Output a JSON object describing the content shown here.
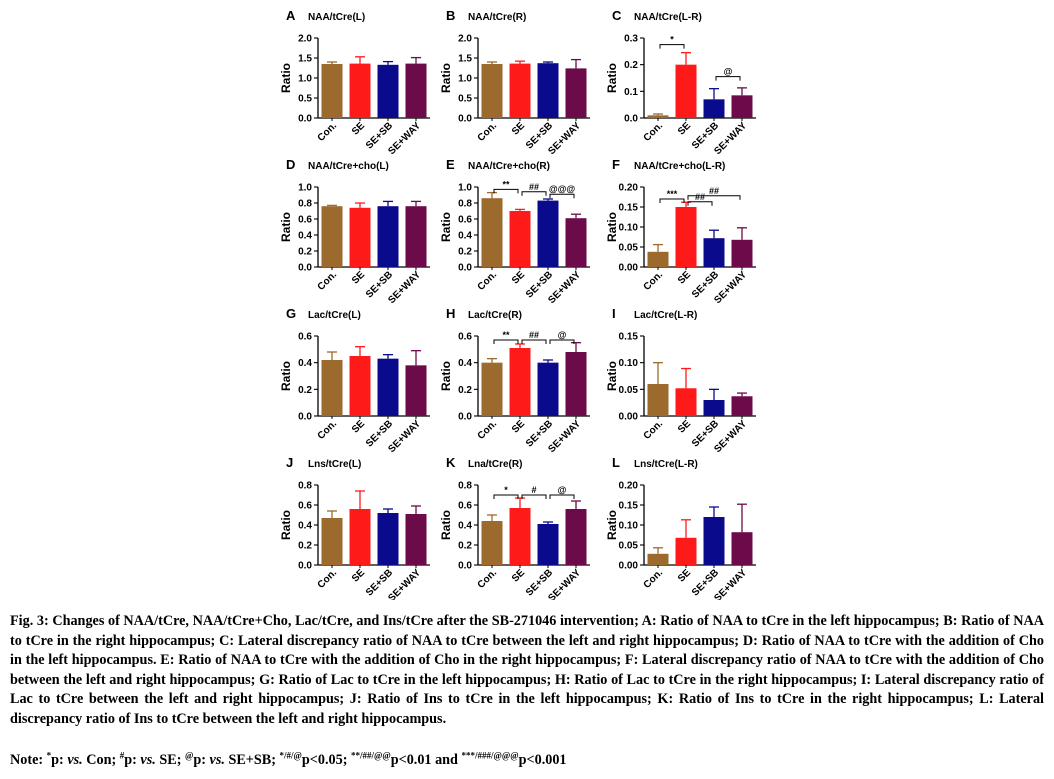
{
  "colors": {
    "Con.": "#9c6a2c",
    "SE": "#ff1a1a",
    "SE+SB": "#0a0a8c",
    "SE+WAY": "#6c0a4a"
  },
  "chart_data": [
    {
      "panel": "A",
      "type": "bar",
      "title": "NAA/tCre(L)",
      "ylabel": "Ratio",
      "categories": [
        "Con.",
        "SE",
        "SE+SB",
        "SE+WAY"
      ],
      "values": [
        1.35,
        1.36,
        1.33,
        1.36
      ],
      "errors": [
        0.05,
        0.17,
        0.08,
        0.15
      ],
      "ylim": [
        0,
        2.0
      ],
      "yticks": [
        "0.0",
        "0.5",
        "1.0",
        "1.5",
        "2.0"
      ],
      "brackets": []
    },
    {
      "panel": "B",
      "type": "bar",
      "title": "NAA/tCre(R)",
      "ylabel": "Ratio",
      "categories": [
        "Con.",
        "SE",
        "SE+SB",
        "SE+WAY"
      ],
      "values": [
        1.35,
        1.36,
        1.37,
        1.24
      ],
      "errors": [
        0.05,
        0.06,
        0.03,
        0.22
      ],
      "ylim": [
        0,
        2.0
      ],
      "yticks": [
        "0.0",
        "0.5",
        "1.0",
        "1.5",
        "2.0"
      ],
      "brackets": []
    },
    {
      "panel": "C",
      "type": "bar",
      "title": "NAA/tCre(L-R)",
      "ylabel": "Ratio",
      "categories": [
        "Con.",
        "SE",
        "SE+SB",
        "SE+WAY"
      ],
      "values": [
        0.01,
        0.2,
        0.07,
        0.085
      ],
      "errors": [
        0.005,
        0.045,
        0.04,
        0.028
      ],
      "ylim": [
        0,
        0.3
      ],
      "yticks": [
        "0.0",
        "0.1",
        "0.2",
        "0.3"
      ],
      "brackets": [
        {
          "from": 0,
          "to": 1,
          "y": 0.275,
          "label": "*"
        },
        {
          "from": 2,
          "to": 3,
          "y": 0.155,
          "label": "@"
        }
      ]
    },
    {
      "panel": "D",
      "type": "bar",
      "title": "NAA/tCre+cho(L)",
      "ylabel": "Ratio",
      "categories": [
        "Con.",
        "SE",
        "SE+SB",
        "SE+WAY"
      ],
      "values": [
        0.76,
        0.74,
        0.76,
        0.76
      ],
      "errors": [
        0.01,
        0.06,
        0.06,
        0.06
      ],
      "ylim": [
        0,
        1.0
      ],
      "yticks": [
        "0.0",
        "0.2",
        "0.4",
        "0.6",
        "0.8",
        "1.0"
      ],
      "brackets": []
    },
    {
      "panel": "E",
      "type": "bar",
      "title": "NAA/tCre+cho(R)",
      "ylabel": "Ratio",
      "categories": [
        "Con.",
        "SE",
        "SE+SB",
        "SE+WAY"
      ],
      "values": [
        0.86,
        0.7,
        0.83,
        0.61
      ],
      "errors": [
        0.07,
        0.02,
        0.02,
        0.05
      ],
      "ylim": [
        0,
        1.0
      ],
      "yticks": [
        "0.0",
        "0.2",
        "0.4",
        "0.6",
        "0.8",
        "1.0"
      ],
      "brackets": [
        {
          "from": 0,
          "to": 1,
          "y": 0.97,
          "label": "**"
        },
        {
          "from": 1,
          "to": 2,
          "y": 0.94,
          "label": "##"
        },
        {
          "from": 2,
          "to": 3,
          "y": 0.91,
          "label": "@@@"
        }
      ]
    },
    {
      "panel": "F",
      "type": "bar",
      "title": "NAA/tCre+cho(L-R)",
      "ylabel": "Ratio",
      "categories": [
        "Con.",
        "SE",
        "SE+SB",
        "SE+WAY"
      ],
      "values": [
        0.038,
        0.15,
        0.072,
        0.068
      ],
      "errors": [
        0.018,
        0.012,
        0.02,
        0.03
      ],
      "ylim": [
        0,
        0.2
      ],
      "yticks": [
        "0.00",
        "0.05",
        "0.10",
        "0.15",
        "0.20"
      ],
      "brackets": [
        {
          "from": 0,
          "to": 1,
          "y": 0.17,
          "label": "***"
        },
        {
          "from": 1,
          "to": 2,
          "y": 0.163,
          "label": "##"
        },
        {
          "from": 1,
          "to": 3,
          "y": 0.178,
          "label": "##"
        }
      ]
    },
    {
      "panel": "G",
      "type": "bar",
      "title": "Lac/tCre(L)",
      "ylabel": "Ratio",
      "categories": [
        "Con.",
        "SE",
        "SE+SB",
        "SE+WAY"
      ],
      "values": [
        0.42,
        0.45,
        0.43,
        0.38
      ],
      "errors": [
        0.06,
        0.07,
        0.03,
        0.11
      ],
      "ylim": [
        0,
        0.6
      ],
      "yticks": [
        "0.0",
        "0.2",
        "0.4",
        "0.6"
      ],
      "brackets": []
    },
    {
      "panel": "H",
      "type": "bar",
      "title": "Lac/tCre(R)",
      "ylabel": "Ratio",
      "categories": [
        "Con.",
        "SE",
        "SE+SB",
        "SE+WAY"
      ],
      "values": [
        0.4,
        0.51,
        0.4,
        0.48
      ],
      "errors": [
        0.03,
        0.03,
        0.02,
        0.07
      ],
      "ylim": [
        0,
        0.6
      ],
      "yticks": [
        "0.0",
        "0.2",
        "0.4",
        "0.6"
      ],
      "brackets": [
        {
          "from": 0,
          "to": 1,
          "y": 0.57,
          "label": "**"
        },
        {
          "from": 1,
          "to": 2,
          "y": 0.57,
          "label": "##"
        },
        {
          "from": 2,
          "to": 3,
          "y": 0.57,
          "label": "@"
        }
      ]
    },
    {
      "panel": "I",
      "type": "bar",
      "title": "Lac/tCre(L-R)",
      "ylabel": "Ratio",
      "categories": [
        "Con.",
        "SE",
        "SE+SB",
        "SE+WAY"
      ],
      "values": [
        0.06,
        0.052,
        0.03,
        0.037
      ],
      "errors": [
        0.04,
        0.037,
        0.02,
        0.006
      ],
      "ylim": [
        0,
        0.15
      ],
      "yticks": [
        "0.00",
        "0.05",
        "0.10",
        "0.15"
      ],
      "brackets": []
    },
    {
      "panel": "J",
      "type": "bar",
      "title": "Lns/tCre(L)",
      "ylabel": "Ratio",
      "categories": [
        "Con.",
        "SE",
        "SE+SB",
        "SE+WAY"
      ],
      "values": [
        0.47,
        0.56,
        0.52,
        0.51
      ],
      "errors": [
        0.07,
        0.18,
        0.04,
        0.08
      ],
      "ylim": [
        0,
        0.8
      ],
      "yticks": [
        "0.0",
        "0.2",
        "0.4",
        "0.6",
        "0.8"
      ],
      "brackets": []
    },
    {
      "panel": "K",
      "type": "bar",
      "title": "Lna/tCre(R)",
      "ylabel": "Ratio",
      "categories": [
        "Con.",
        "SE",
        "SE+SB",
        "SE+WAY"
      ],
      "values": [
        0.44,
        0.57,
        0.41,
        0.56
      ],
      "errors": [
        0.06,
        0.1,
        0.02,
        0.08
      ],
      "ylim": [
        0,
        0.8
      ],
      "yticks": [
        "0.0",
        "0.2",
        "0.4",
        "0.6",
        "0.8"
      ],
      "brackets": [
        {
          "from": 0,
          "to": 1,
          "y": 0.7,
          "label": "*"
        },
        {
          "from": 1,
          "to": 2,
          "y": 0.7,
          "label": "#"
        },
        {
          "from": 2,
          "to": 3,
          "y": 0.7,
          "label": "@"
        }
      ]
    },
    {
      "panel": "L",
      "type": "bar",
      "title": "Lns/tCre(L-R)",
      "ylabel": "Ratio",
      "categories": [
        "Con.",
        "SE",
        "SE+SB",
        "SE+WAY"
      ],
      "values": [
        0.028,
        0.068,
        0.12,
        0.082
      ],
      "errors": [
        0.015,
        0.045,
        0.025,
        0.07
      ],
      "ylim": [
        0,
        0.2
      ],
      "yticks": [
        "0.00",
        "0.05",
        "0.10",
        "0.15",
        "0.20"
      ],
      "brackets": []
    }
  ],
  "caption": {
    "text": "Fig. 3: Changes of NAA/tCre, NAA/tCre+Cho, Lac/tCre, and Ins/tCre after the SB-271046 intervention; A: Ratio of NAA to tCre in the left hippocampus; B: Ratio of NAA to tCre in the right hippocampus; C: Lateral discrepancy ratio of NAA to tCre between the left and right hippocampus; D: Ratio of NAA to tCre with the addition of Cho in the left hippocampus. E: Ratio of NAA to tCre with the addition of Cho in the right hippocampus; F: Lateral discrepancy ratio of NAA to tCre with the addition of Cho between the left and right hippocampus; G: Ratio of Lac to tCre in the left hippocampus; H: Ratio of Lac to tCre in the right hippocampus; I: Lateral discrepancy ratio of Lac to tCre between the left and right hippocampus; J: Ratio of Ins to tCre in the left hippocampus; K: Ratio of Ins to tCre in the right hippocampus; L: Lateral discrepancy ratio of Ins to tCre between the left and right hippocampus."
  },
  "note": {
    "lead": "Note: ",
    "s1": "*",
    "t1": "p: ",
    "vs1": "vs.",
    "g1": " Con; ",
    "s2": "#",
    "t2": "p: ",
    "vs2": "vs.",
    "g2": " SE; ",
    "s3": "@",
    "t3": "p: ",
    "vs3": "vs.",
    "g3": " SE+SB; ",
    "s4": "*/#/@",
    "t4": "p<0.05; ",
    "s5": "**/##/@@",
    "t5": "p<0.01 and ",
    "s6": "***/###/@@@",
    "t6": "p<0.001"
  }
}
